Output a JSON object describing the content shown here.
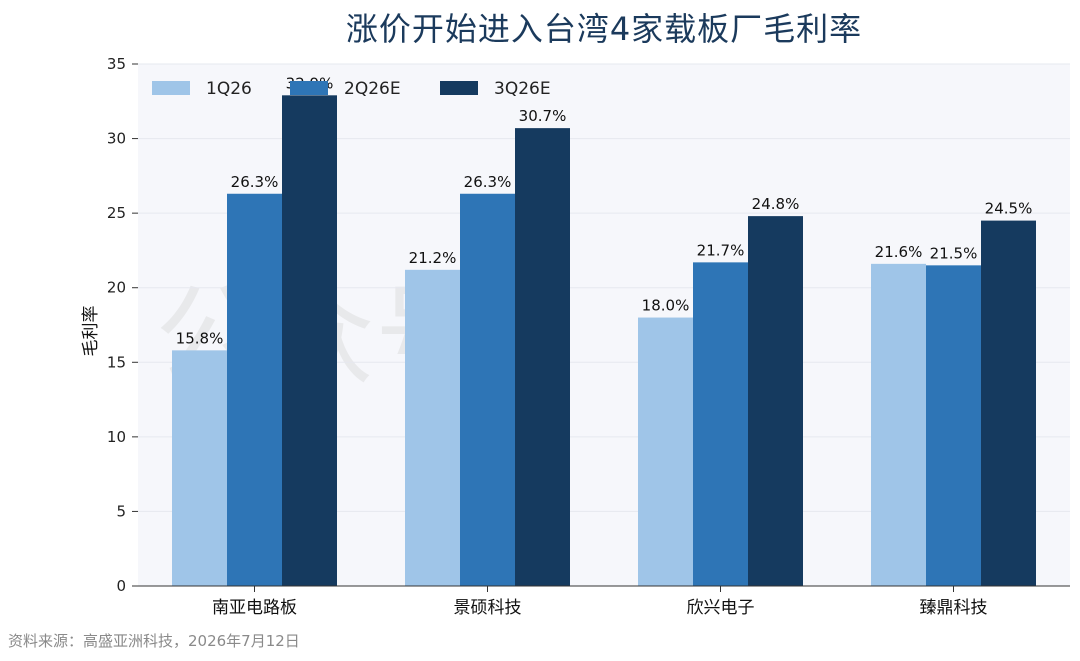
{
  "title": "涨价开始进入台湾4家载板厂毛利率",
  "source": "资料来源：高盛亚洲科技，2026年7月12日",
  "colors": {
    "plot_bg": "#f6f7fb",
    "grid": "#e6e8ef",
    "axis": "#333333"
  },
  "chart_data": {
    "type": "bar",
    "title": "涨价开始进入台湾4家载板厂毛利率",
    "xlabel": "",
    "ylabel": "毛利率",
    "ylim": [
      0,
      35
    ],
    "yticks": [
      0,
      5,
      10,
      15,
      20,
      25,
      30,
      35
    ],
    "grid": true,
    "legend_position": "top-left",
    "categories": [
      "南亚电路板",
      "景硕科技",
      "欣兴电子",
      "臻鼎科技"
    ],
    "series": [
      {
        "name": "1Q26",
        "color": "#9fc5e8",
        "values": [
          15.8,
          21.2,
          18.0,
          21.6
        ],
        "labels": [
          "15.8%",
          "21.2%",
          "18.0%",
          "21.6%"
        ]
      },
      {
        "name": "2Q26E",
        "color": "#2e75b6",
        "values": [
          26.3,
          26.3,
          21.7,
          21.5
        ],
        "labels": [
          "26.3%",
          "26.3%",
          "21.7%",
          "21.5%"
        ]
      },
      {
        "name": "3Q26E",
        "color": "#153a5f",
        "values": [
          32.9,
          30.7,
          24.8,
          24.5
        ],
        "labels": [
          "32.9%",
          "30.7%",
          "24.8%",
          "24.5%"
        ]
      }
    ]
  }
}
